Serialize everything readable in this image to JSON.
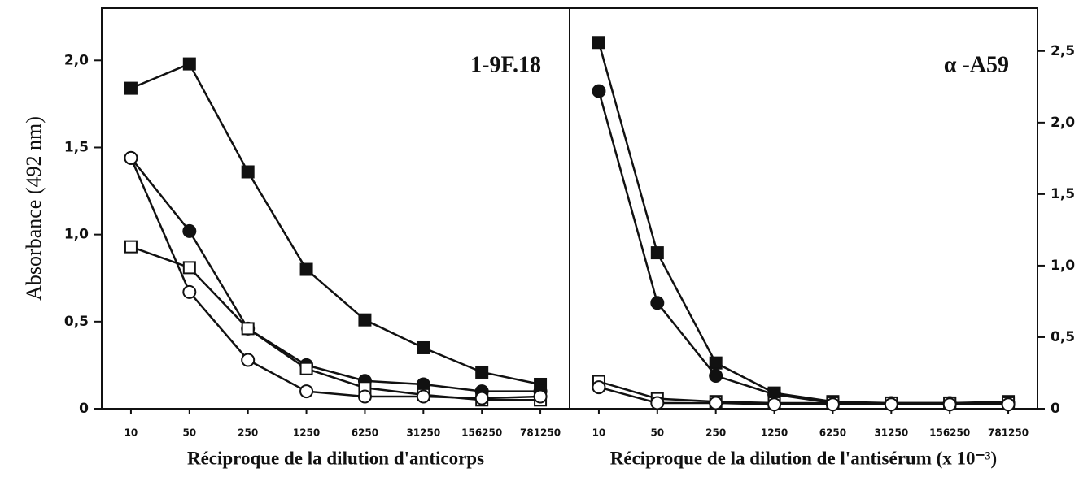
{
  "chart_data": [
    {
      "type": "line",
      "title": "1-9F.18",
      "ylabel": "Absorbance (492 nm)",
      "xlabel": "Réciproque de la dilution d'anticorps",
      "categories": [
        "10",
        "50",
        "250",
        "1250",
        "6250",
        "31250",
        "156250",
        "781250"
      ],
      "ylim": [
        0,
        2.3
      ],
      "yticks": [
        0,
        {
          "value": 0.5,
          "label": "0,5"
        },
        {
          "value": 1.0,
          "label": "1,0"
        },
        {
          "value": 1.5,
          "label": "1,5"
        },
        {
          "value": 2.0,
          "label": "2,0"
        }
      ],
      "yaxis_side": "left",
      "series": [
        {
          "marker": "square",
          "filled": true,
          "color": "#111111",
          "values": [
            1.84,
            1.98,
            1.36,
            0.8,
            0.51,
            0.35,
            0.21,
            0.14
          ]
        },
        {
          "marker": "circle",
          "filled": true,
          "color": "#111111",
          "values": [
            1.44,
            1.02,
            0.46,
            0.25,
            0.16,
            0.14,
            0.1,
            0.1
          ]
        },
        {
          "marker": "square",
          "filled": false,
          "color": "#111111",
          "values": [
            0.93,
            0.81,
            0.46,
            0.23,
            0.12,
            0.08,
            0.05,
            0.05
          ]
        },
        {
          "marker": "circle",
          "filled": false,
          "color": "#111111",
          "values": [
            1.44,
            0.67,
            0.28,
            0.1,
            0.07,
            0.07,
            0.06,
            0.07
          ]
        }
      ]
    },
    {
      "type": "line",
      "title": "α -A59",
      "xlabel": "Réciproque de la dilution de l'antisérum (x 10⁻³)",
      "categories": [
        "10",
        "50",
        "250",
        "1250",
        "6250",
        "31250",
        "156250",
        "781250"
      ],
      "ylim": [
        0,
        2.8
      ],
      "yticks": [
        0,
        {
          "value": 0.5,
          "label": "0,5"
        },
        {
          "value": 1.0,
          "label": "1,0"
        },
        {
          "value": 1.5,
          "label": "1,5"
        },
        {
          "value": 2.0,
          "label": "2,0"
        },
        {
          "value": 2.5,
          "label": "2,5"
        }
      ],
      "yaxis_side": "right",
      "series": [
        {
          "marker": "square",
          "filled": true,
          "color": "#111111",
          "values": [
            2.56,
            1.09,
            0.32,
            0.11,
            0.05,
            0.04,
            0.04,
            0.05
          ]
        },
        {
          "marker": "circle",
          "filled": true,
          "color": "#111111",
          "values": [
            2.22,
            0.74,
            0.23,
            0.1,
            0.04,
            0.04,
            0.04,
            0.04
          ]
        },
        {
          "marker": "square",
          "filled": false,
          "color": "#111111",
          "values": [
            0.19,
            0.07,
            0.05,
            0.04,
            0.04,
            0.04,
            0.04,
            0.04
          ]
        },
        {
          "marker": "circle",
          "filled": false,
          "color": "#111111",
          "values": [
            0.15,
            0.04,
            0.04,
            0.03,
            0.03,
            0.03,
            0.03,
            0.03
          ]
        }
      ]
    }
  ]
}
